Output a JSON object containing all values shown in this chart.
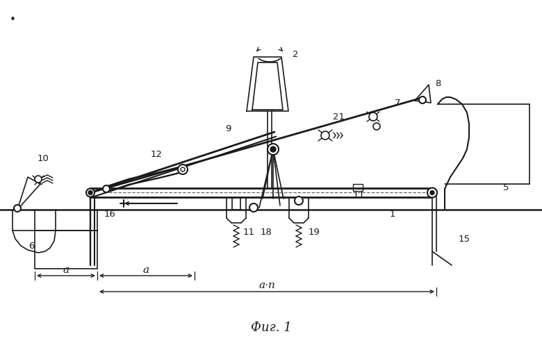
{
  "bg_color": "#ffffff",
  "line_color": "#1a1a1a",
  "title": "Фиг. 1",
  "title_fontsize": 13,
  "figsize": [
    7.8,
    4.94
  ],
  "dpi": 100,
  "bullet": "•",
  "dim_a1": "a",
  "dim_a2": "a",
  "dim_an": "a·n"
}
